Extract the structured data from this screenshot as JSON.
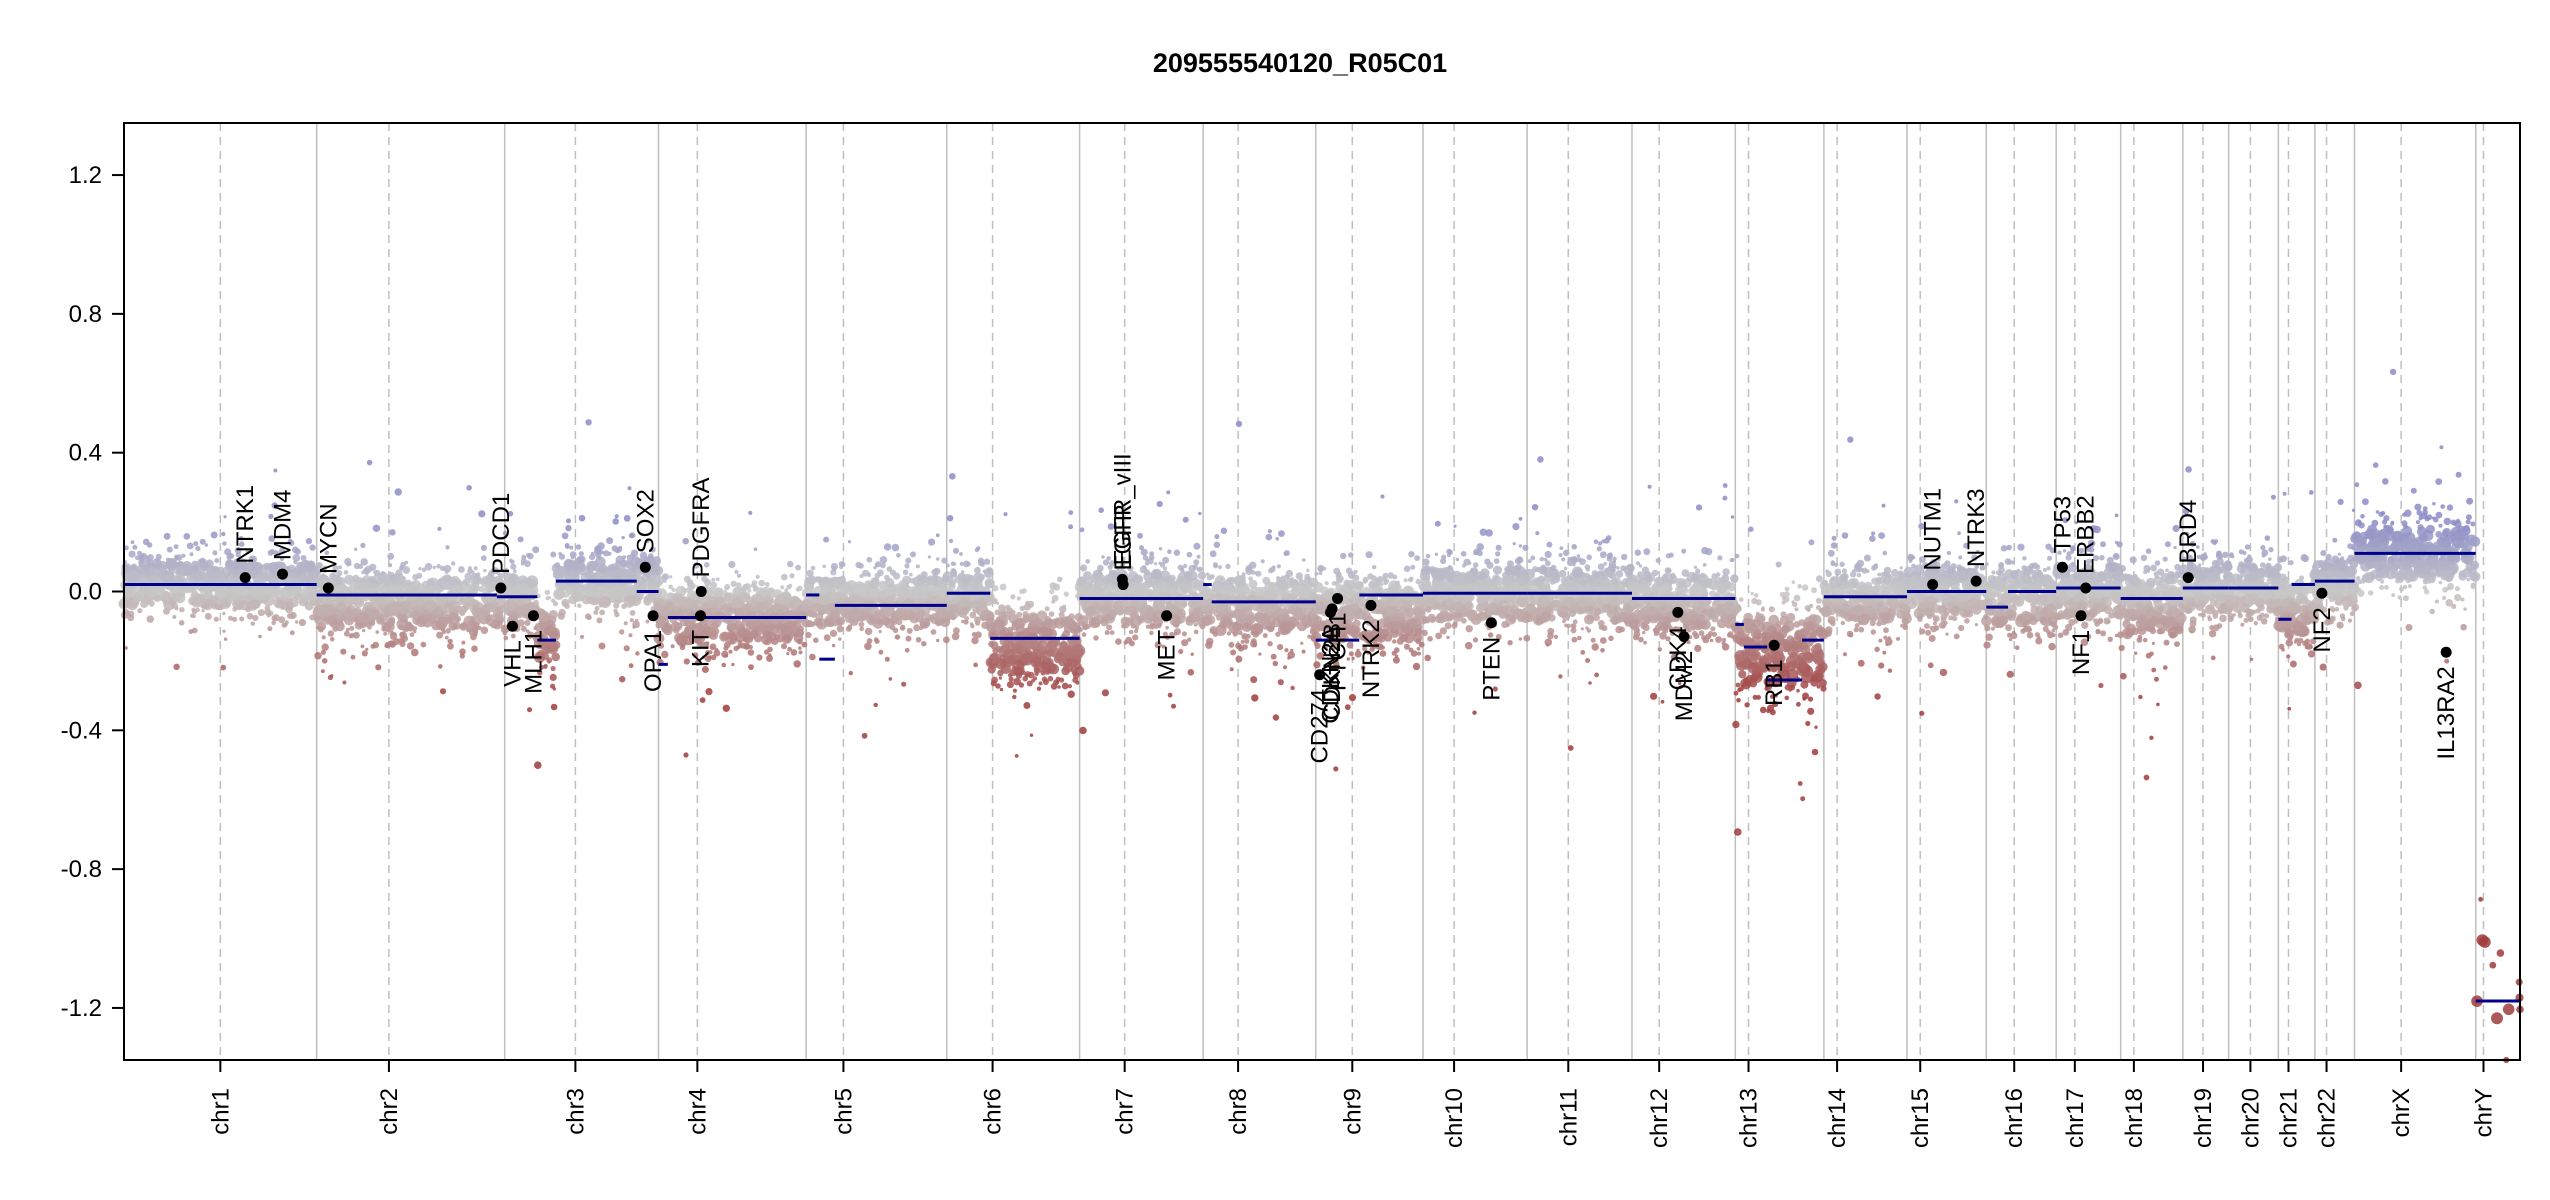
{
  "chart_data": {
    "type": "scatter",
    "title": "209555540120_R05C01",
    "xlabel": "",
    "ylabel": "",
    "ylim": [
      -1.35,
      1.35
    ],
    "yticks": [
      {
        "value": -1.2,
        "label": "-1.2"
      },
      {
        "value": -0.8,
        "label": "-0.8"
      },
      {
        "value": -0.4,
        "label": "-0.4"
      },
      {
        "value": 0.0,
        "label": "0.0"
      },
      {
        "value": 0.4,
        "label": "0.4"
      },
      {
        "value": 0.8,
        "label": "0.8"
      },
      {
        "value": 1.2,
        "label": "1.2"
      }
    ],
    "grid": "vertical chromosome boundaries (solid) and centromeres (dashed)",
    "colors": {
      "gain": "#8c8cc8",
      "neutral": "#c8c8c8",
      "loss": "#a03c3c",
      "segment": "#00008b",
      "gene_point": "#000000",
      "boundary_line": "#bfbfbf",
      "centromere_line": "#bfbfbf"
    },
    "chromosomes": [
      {
        "name": "chr1",
        "start": 0,
        "end": 248,
        "centromere": 124
      },
      {
        "name": "chr2",
        "start": 248,
        "end": 490,
        "centromere": 341
      },
      {
        "name": "chr3",
        "start": 490,
        "end": 688,
        "centromere": 581
      },
      {
        "name": "chr4",
        "start": 688,
        "end": 878,
        "centromere": 738
      },
      {
        "name": "chr5",
        "start": 878,
        "end": 1059,
        "centromere": 926
      },
      {
        "name": "chr6",
        "start": 1059,
        "end": 1230,
        "centromere": 1118
      },
      {
        "name": "chr7",
        "start": 1230,
        "end": 1389,
        "centromere": 1288
      },
      {
        "name": "chr8",
        "start": 1389,
        "end": 1534,
        "centromere": 1434
      },
      {
        "name": "chr9",
        "start": 1534,
        "end": 1672,
        "centromere": 1581
      },
      {
        "name": "chr10",
        "start": 1672,
        "end": 1806,
        "centromere": 1712
      },
      {
        "name": "chr11",
        "start": 1806,
        "end": 1941,
        "centromere": 1859
      },
      {
        "name": "chr12",
        "start": 1941,
        "end": 2074,
        "centromere": 1976
      },
      {
        "name": "chr13",
        "start": 2074,
        "end": 2188,
        "centromere": 2091
      },
      {
        "name": "chr14",
        "start": 2188,
        "end": 2295,
        "centromere": 2205
      },
      {
        "name": "chr15",
        "start": 2295,
        "end": 2397,
        "centromere": 2312
      },
      {
        "name": "chr16",
        "start": 2397,
        "end": 2487,
        "centromere": 2433
      },
      {
        "name": "chr17",
        "start": 2487,
        "end": 2570,
        "centromere": 2511
      },
      {
        "name": "chr18",
        "start": 2570,
        "end": 2650,
        "centromere": 2587
      },
      {
        "name": "chr19",
        "start": 2650,
        "end": 2709,
        "centromere": 2676
      },
      {
        "name": "chr20",
        "start": 2709,
        "end": 2773,
        "centromere": 2737
      },
      {
        "name": "chr21",
        "start": 2773,
        "end": 2820,
        "centromere": 2786
      },
      {
        "name": "chr22",
        "start": 2820,
        "end": 2871,
        "centromere": 2835
      },
      {
        "name": "chrX",
        "start": 2871,
        "end": 3027,
        "centromere": 2931
      },
      {
        "name": "chrY",
        "start": 3027,
        "end": 3084,
        "centromere": 3037
      }
    ],
    "segments": [
      {
        "x0": 0,
        "x1": 248,
        "y": 0.02
      },
      {
        "x0": 248,
        "x1": 480,
        "y": -0.01
      },
      {
        "x0": 480,
        "x1": 532,
        "y": -0.015
      },
      {
        "x0": 532,
        "x1": 556,
        "y": -0.14
      },
      {
        "x0": 556,
        "x1": 660,
        "y": 0.03
      },
      {
        "x0": 660,
        "x1": 688,
        "y": 0.0
      },
      {
        "x0": 688,
        "x1": 700,
        "y": -0.21
      },
      {
        "x0": 700,
        "x1": 878,
        "y": -0.075
      },
      {
        "x0": 878,
        "x1": 895,
        "y": -0.01
      },
      {
        "x0": 895,
        "x1": 915,
        "y": -0.195
      },
      {
        "x0": 915,
        "x1": 1059,
        "y": -0.04
      },
      {
        "x0": 1059,
        "x1": 1115,
        "y": -0.005
      },
      {
        "x0": 1115,
        "x1": 1230,
        "y": -0.135
      },
      {
        "x0": 1230,
        "x1": 1389,
        "y": -0.02
      },
      {
        "x0": 1389,
        "x1": 1400,
        "y": 0.02
      },
      {
        "x0": 1400,
        "x1": 1534,
        "y": -0.03
      },
      {
        "x0": 1534,
        "x1": 1590,
        "y": -0.14
      },
      {
        "x0": 1590,
        "x1": 1672,
        "y": -0.01
      },
      {
        "x0": 1672,
        "x1": 1806,
        "y": -0.005
      },
      {
        "x0": 1806,
        "x1": 1941,
        "y": -0.005
      },
      {
        "x0": 1941,
        "x1": 2074,
        "y": -0.02
      },
      {
        "x0": 2074,
        "x1": 2085,
        "y": -0.095
      },
      {
        "x0": 2085,
        "x1": 2115,
        "y": -0.16
      },
      {
        "x0": 2115,
        "x1": 2160,
        "y": -0.255
      },
      {
        "x0": 2160,
        "x1": 2188,
        "y": -0.14
      },
      {
        "x0": 2188,
        "x1": 2295,
        "y": -0.015
      },
      {
        "x0": 2295,
        "x1": 2397,
        "y": 0.0
      },
      {
        "x0": 2397,
        "x1": 2425,
        "y": -0.045
      },
      {
        "x0": 2425,
        "x1": 2487,
        "y": 0.0
      },
      {
        "x0": 2487,
        "x1": 2570,
        "y": 0.01
      },
      {
        "x0": 2570,
        "x1": 2650,
        "y": -0.02
      },
      {
        "x0": 2650,
        "x1": 2709,
        "y": 0.01
      },
      {
        "x0": 2709,
        "x1": 2773,
        "y": 0.01
      },
      {
        "x0": 2773,
        "x1": 2790,
        "y": -0.08
      },
      {
        "x0": 2790,
        "x1": 2820,
        "y": 0.02
      },
      {
        "x0": 2820,
        "x1": 2871,
        "y": 0.03
      },
      {
        "x0": 2871,
        "x1": 3027,
        "y": 0.11
      },
      {
        "x0": 3027,
        "x1": 3084,
        "y": -1.18
      }
    ],
    "genes": [
      {
        "name": "NTRK1",
        "x": 156,
        "y": 0.04,
        "label_pos": "above"
      },
      {
        "name": "MDM4",
        "x": 204,
        "y": 0.05,
        "label_pos": "above"
      },
      {
        "name": "MYCN",
        "x": 263,
        "y": 0.01,
        "label_pos": "above"
      },
      {
        "name": "PDCD1",
        "x": 485,
        "y": 0.01,
        "label_pos": "above"
      },
      {
        "name": "VHL",
        "x": 500,
        "y": -0.1,
        "label_pos": "below"
      },
      {
        "name": "MLH1",
        "x": 527,
        "y": -0.07,
        "label_pos": "below"
      },
      {
        "name": "SOX2",
        "x": 671,
        "y": 0.07,
        "label_pos": "above"
      },
      {
        "name": "OPA1",
        "x": 681,
        "y": -0.07,
        "label_pos": "below"
      },
      {
        "name": "PDGFRA",
        "x": 743,
        "y": 0.0,
        "label_pos": "above"
      },
      {
        "name": "KIT",
        "x": 742,
        "y": -0.07,
        "label_pos": "below"
      },
      {
        "name": "EGFR_vIII",
        "x": 1285,
        "y": 0.035,
        "label_pos": "above"
      },
      {
        "name": "EGFR",
        "x": 1286,
        "y": 0.02,
        "label_pos": "above"
      },
      {
        "name": "MET",
        "x": 1342,
        "y": -0.07,
        "label_pos": "below"
      },
      {
        "name": "CD274",
        "x": 1539,
        "y": -0.24,
        "label_pos": "below"
      },
      {
        "name": "CDKN2A",
        "x": 1553,
        "y": -0.06,
        "label_pos": "below"
      },
      {
        "name": "CDKN2B",
        "x": 1555,
        "y": -0.05,
        "label_pos": "below"
      },
      {
        "name": "PTCH1",
        "x": 1562,
        "y": -0.02,
        "label_pos": "below"
      },
      {
        "name": "NTRK2",
        "x": 1605,
        "y": -0.04,
        "label_pos": "below"
      },
      {
        "name": "PTEN",
        "x": 1760,
        "y": -0.09,
        "label_pos": "below"
      },
      {
        "name": "CDK4",
        "x": 2000,
        "y": -0.06,
        "label_pos": "below"
      },
      {
        "name": "MDM2",
        "x": 2008,
        "y": -0.13,
        "label_pos": "below"
      },
      {
        "name": "RB1",
        "x": 2124,
        "y": -0.155,
        "label_pos": "below"
      },
      {
        "name": "NUTM1",
        "x": 2328,
        "y": 0.02,
        "label_pos": "above"
      },
      {
        "name": "NTRK3",
        "x": 2384,
        "y": 0.03,
        "label_pos": "above"
      },
      {
        "name": "TP53",
        "x": 2495,
        "y": 0.07,
        "label_pos": "above"
      },
      {
        "name": "NF1",
        "x": 2519,
        "y": -0.07,
        "label_pos": "below"
      },
      {
        "name": "ERBB2",
        "x": 2525,
        "y": 0.01,
        "label_pos": "above"
      },
      {
        "name": "BRD4",
        "x": 2657,
        "y": 0.04,
        "label_pos": "above"
      },
      {
        "name": "NF2",
        "x": 2829,
        "y": -0.005,
        "label_pos": "below"
      },
      {
        "name": "IL13RA2",
        "x": 2989,
        "y": -0.175,
        "label_pos": "below"
      }
    ],
    "scatter_profiles": [
      {
        "x0": 0,
        "x1": 248,
        "mean": 0.02,
        "spread": 0.07,
        "n": 620
      },
      {
        "x0": 248,
        "x1": 490,
        "mean": -0.03,
        "spread": 0.08,
        "n": 620
      },
      {
        "x0": 490,
        "x1": 532,
        "mean": -0.03,
        "spread": 0.08,
        "n": 110
      },
      {
        "x0": 532,
        "x1": 556,
        "mean": -0.12,
        "spread": 0.08,
        "n": 60
      },
      {
        "x0": 556,
        "x1": 688,
        "mean": 0.03,
        "spread": 0.07,
        "n": 330
      },
      {
        "x0": 688,
        "x1": 878,
        "mean": -0.07,
        "spread": 0.08,
        "n": 480
      },
      {
        "x0": 878,
        "x1": 1059,
        "mean": -0.03,
        "spread": 0.07,
        "n": 460
      },
      {
        "x0": 1059,
        "x1": 1115,
        "mean": -0.01,
        "spread": 0.07,
        "n": 140
      },
      {
        "x0": 1115,
        "x1": 1230,
        "mean": -0.15,
        "spread": 0.09,
        "n": 300
      },
      {
        "x0": 1230,
        "x1": 1389,
        "mean": -0.02,
        "spread": 0.08,
        "n": 410
      },
      {
        "x0": 1389,
        "x1": 1534,
        "mean": -0.04,
        "spread": 0.08,
        "n": 370
      },
      {
        "x0": 1534,
        "x1": 1672,
        "mean": -0.06,
        "spread": 0.09,
        "n": 340
      },
      {
        "x0": 1672,
        "x1": 1806,
        "mean": -0.01,
        "spread": 0.08,
        "n": 340
      },
      {
        "x0": 1806,
        "x1": 1941,
        "mean": -0.01,
        "spread": 0.08,
        "n": 350
      },
      {
        "x0": 1941,
        "x1": 2074,
        "mean": -0.03,
        "spread": 0.08,
        "n": 340
      },
      {
        "x0": 2074,
        "x1": 2188,
        "mean": -0.17,
        "spread": 0.11,
        "n": 270
      },
      {
        "x0": 2188,
        "x1": 2295,
        "mean": -0.02,
        "spread": 0.07,
        "n": 270
      },
      {
        "x0": 2295,
        "x1": 2397,
        "mean": 0.0,
        "spread": 0.07,
        "n": 260
      },
      {
        "x0": 2397,
        "x1": 2487,
        "mean": -0.02,
        "spread": 0.08,
        "n": 230
      },
      {
        "x0": 2487,
        "x1": 2570,
        "mean": 0.0,
        "spread": 0.08,
        "n": 230
      },
      {
        "x0": 2570,
        "x1": 2650,
        "mean": -0.04,
        "spread": 0.09,
        "n": 210
      },
      {
        "x0": 2650,
        "x1": 2709,
        "mean": 0.01,
        "spread": 0.07,
        "n": 170
      },
      {
        "x0": 2709,
        "x1": 2773,
        "mean": 0.01,
        "spread": 0.07,
        "n": 170
      },
      {
        "x0": 2773,
        "x1": 2820,
        "mean": -0.05,
        "spread": 0.08,
        "n": 120
      },
      {
        "x0": 2820,
        "x1": 2871,
        "mean": 0.02,
        "spread": 0.07,
        "n": 140
      },
      {
        "x0": 2871,
        "x1": 3027,
        "mean": 0.11,
        "spread": 0.08,
        "n": 380
      },
      {
        "x0": 3027,
        "x1": 3084,
        "mean": -1.1,
        "spread": 0.15,
        "n": 12
      }
    ]
  }
}
